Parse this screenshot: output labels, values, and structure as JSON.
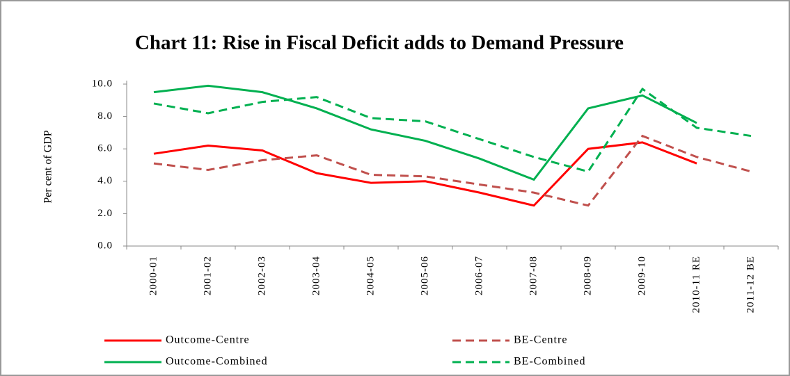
{
  "chart_data": {
    "type": "line",
    "title": "Chart 11: Rise in Fiscal Deficit adds to Demand Pressure",
    "y_label": "Per cent of GDP",
    "categories": [
      "2000-01",
      "2001-02",
      "2002-03",
      "2003-04",
      "2004-05",
      "2005-06",
      "2006-07",
      "2007-08",
      "2008-09",
      "2009-10",
      "2010-11 RE",
      "2011-12 BE"
    ],
    "series": [
      {
        "name": "Outcome-Centre",
        "color": "#ff0000",
        "dashed": false,
        "values": [
          5.7,
          6.2,
          5.9,
          4.5,
          3.9,
          4.0,
          3.3,
          2.5,
          6.0,
          6.4,
          5.1,
          null
        ]
      },
      {
        "name": "BE-Centre",
        "color": "#c0504d",
        "dashed": true,
        "values": [
          5.1,
          4.7,
          5.3,
          5.6,
          4.4,
          4.3,
          3.8,
          3.3,
          2.5,
          6.8,
          5.5,
          4.6
        ]
      },
      {
        "name": "Outcome-Combined",
        "color": "#00b050",
        "dashed": false,
        "values": [
          9.5,
          9.9,
          9.5,
          8.5,
          7.2,
          6.5,
          5.4,
          4.1,
          8.5,
          9.3,
          7.6,
          null
        ]
      },
      {
        "name": "BE-Combined",
        "color": "#00b050",
        "dashed": true,
        "values": [
          8.8,
          8.2,
          8.9,
          9.2,
          7.9,
          7.7,
          6.6,
          5.5,
          4.6,
          9.7,
          7.3,
          6.8
        ]
      }
    ],
    "ylim": [
      0,
      10
    ],
    "yticks": [
      {
        "value": 0,
        "label": "0.0"
      },
      {
        "value": 2,
        "label": "2.0"
      },
      {
        "value": 4,
        "label": "4.0"
      },
      {
        "value": 6,
        "label": "6.0"
      },
      {
        "value": 8,
        "label": "8.0"
      },
      {
        "value": 10,
        "label": "10.0"
      }
    ]
  }
}
